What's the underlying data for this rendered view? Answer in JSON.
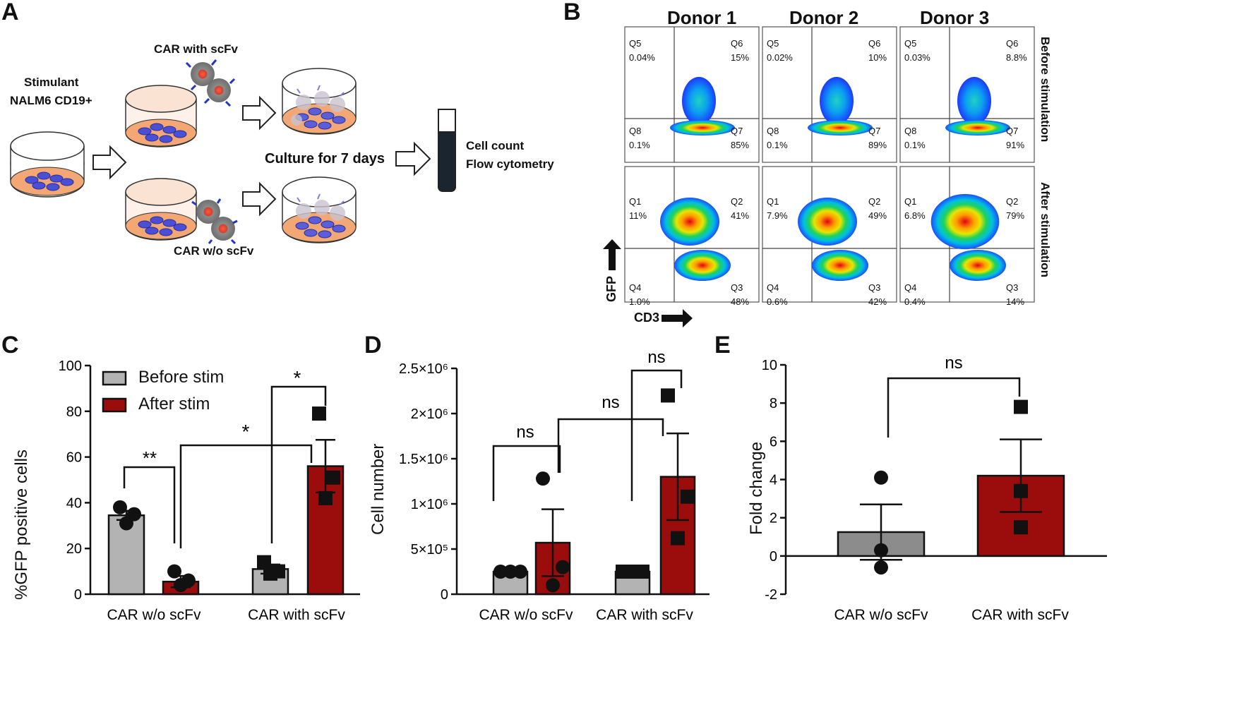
{
  "panels": {
    "a": "A",
    "b": "B",
    "c": "C",
    "d": "D",
    "e": "E"
  },
  "schematic": {
    "stimulant": "Stimulant",
    "cell_line": "NALM6 CD19+",
    "car_with": "CAR with scFv",
    "car_without": "CAR w/o scFv",
    "culture": "Culture for 7 days",
    "readout1": "Cell count",
    "readout2": "Flow cytometry"
  },
  "flow": {
    "donors": [
      "Donor 1",
      "Donor 2",
      "Donor 3"
    ],
    "before_label": "Before stimulation",
    "after_label": "After stimulation",
    "x_axis": "CD3",
    "y_axis": "GFP",
    "before": [
      {
        "q5": "Q5",
        "q5v": "0.04%",
        "q6": "Q6",
        "q6v": "15%",
        "q8": "Q8",
        "q8v": "0.1%",
        "q7": "Q7",
        "q7v": "85%"
      },
      {
        "q5": "Q5",
        "q5v": "0.02%",
        "q6": "Q6",
        "q6v": "10%",
        "q8": "Q8",
        "q8v": "0.1%",
        "q7": "Q7",
        "q7v": "89%"
      },
      {
        "q5": "Q5",
        "q5v": "0.03%",
        "q6": "Q6",
        "q6v": "8.8%",
        "q8": "Q8",
        "q8v": "0.1%",
        "q7": "Q7",
        "q7v": "91%"
      }
    ],
    "after": [
      {
        "q1": "Q1",
        "q1v": "11%",
        "q2": "Q2",
        "q2v": "41%",
        "q4": "Q4",
        "q4v": "1.0%",
        "q3": "Q3",
        "q3v": "48%"
      },
      {
        "q1": "Q1",
        "q1v": "7.9%",
        "q2": "Q2",
        "q2v": "49%",
        "q4": "Q4",
        "q4v": "0.6%",
        "q3": "Q3",
        "q3v": "42%"
      },
      {
        "q1": "Q1",
        "q1v": "6.8%",
        "q2": "Q2",
        "q2v": "79%",
        "q4": "Q4",
        "q4v": "0.4%",
        "q3": "Q3",
        "q3v": "14%"
      }
    ]
  },
  "colors": {
    "before": "#b3b3b3",
    "after": "#9b0d0d",
    "text": "#111111"
  },
  "chart_data": [
    {
      "id": "C",
      "type": "bar",
      "ylabel": "%GFP positive cells",
      "ylim": [
        0,
        100
      ],
      "yticks": [
        0,
        20,
        40,
        60,
        80,
        100
      ],
      "ytick_labels": [
        "0",
        "20",
        "40",
        "60",
        "80",
        "100"
      ],
      "categories": [
        "CAR w/o scFv",
        "CAR with scFv"
      ],
      "legend": {
        "placement": "top-left",
        "entries": [
          "Before stim",
          "After stim"
        ]
      },
      "series": [
        {
          "name": "Before stim",
          "values": [
            34.5,
            11
          ],
          "sem": [
            2,
            2
          ],
          "points": [
            [
              38,
              35,
              31
            ],
            [
              14,
              10,
              9
            ]
          ]
        },
        {
          "name": "After stim",
          "values": [
            5.5,
            56
          ],
          "sem": [
            2.5,
            11.5
          ],
          "points": [
            [
              10,
              6,
              4
            ],
            [
              79,
              51,
              42
            ]
          ]
        }
      ],
      "annotations": [
        "**",
        "*",
        "*"
      ]
    },
    {
      "id": "D",
      "type": "bar",
      "ylabel": "Cell number",
      "ylim": [
        0,
        2500000
      ],
      "yticks": [
        0,
        500000,
        1000000,
        1500000,
        2000000,
        2500000
      ],
      "ytick_labels": [
        "0",
        "5×10⁵",
        "1×10⁶",
        "1.5×10⁶",
        "2×10⁶",
        "2.5×10⁶"
      ],
      "categories": [
        "CAR w/o scFv",
        "CAR with scFv"
      ],
      "series": [
        {
          "name": "Before stim",
          "values": [
            250000,
            250000
          ],
          "sem": [
            0,
            0
          ],
          "points": [
            [
              250000,
              250000,
              250000
            ],
            [
              250000,
              250000,
              250000
            ]
          ]
        },
        {
          "name": "After stim",
          "values": [
            570000,
            1300000
          ],
          "sem": [
            370000,
            480000
          ],
          "points": [
            [
              1280000,
              300000,
              100000
            ],
            [
              2200000,
              1080000,
              620000
            ]
          ]
        }
      ],
      "annotations": [
        "ns",
        "ns",
        "ns"
      ]
    },
    {
      "id": "E",
      "type": "bar",
      "ylabel": "Fold change",
      "ylim": [
        -2,
        10
      ],
      "yticks": [
        -2,
        0,
        2,
        4,
        6,
        8,
        10
      ],
      "ytick_labels": [
        "-2",
        "0",
        "2",
        "4",
        "6",
        "8",
        "10"
      ],
      "categories": [
        "CAR w/o scFv",
        "CAR with scFv"
      ],
      "series": [
        {
          "name": "Fold change",
          "values": [
            1.25,
            4.2
          ],
          "sem": [
            1.45,
            1.9
          ],
          "points": [
            [
              4.1,
              0.3,
              -0.6
            ],
            [
              7.8,
              3.4,
              1.5
            ]
          ]
        }
      ],
      "annotations": [
        "ns"
      ]
    }
  ]
}
